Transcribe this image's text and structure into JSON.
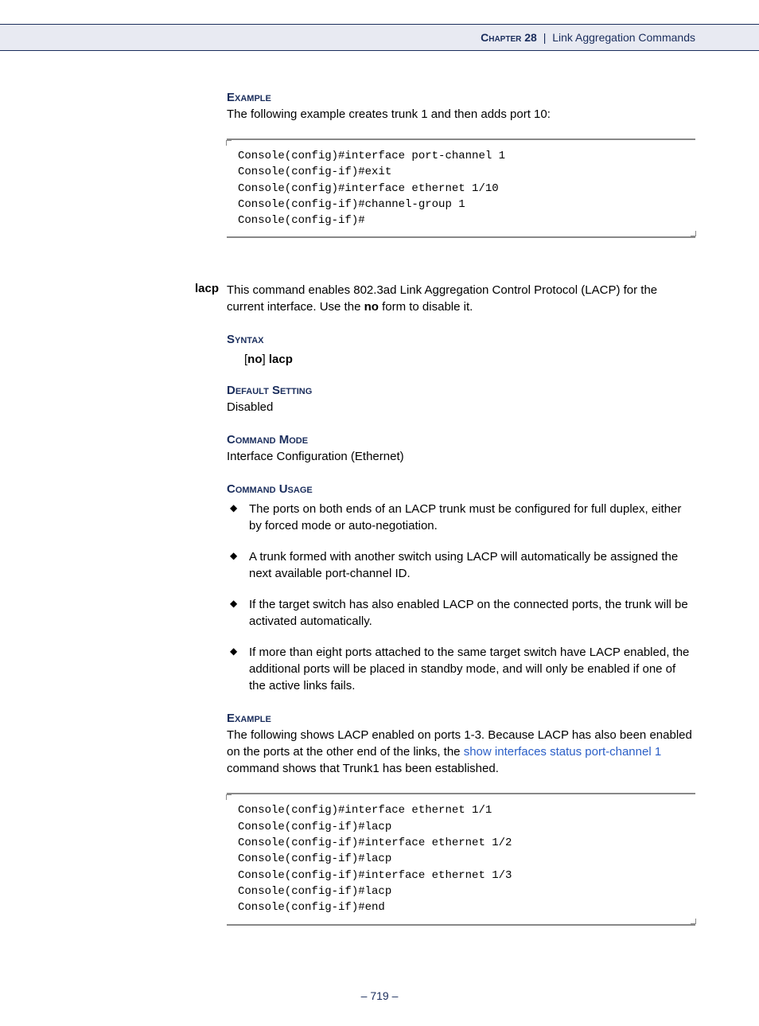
{
  "header": {
    "chapter_label": "Chapter 28",
    "separator": "|",
    "chapter_title": "Link Aggregation Commands"
  },
  "sections": {
    "example1": {
      "heading": "Example",
      "intro": "The following example creates trunk 1 and then adds port 10:",
      "code": "Console(config)#interface port-channel 1\nConsole(config-if)#exit\nConsole(config)#interface ethernet 1/10\nConsole(config-if)#channel-group 1\nConsole(config-if)#"
    },
    "lacp": {
      "margin_label": "lacp",
      "desc_pre": "This command enables 802.3ad Link Aggregation Control Protocol (LACP) for the current interface. Use the ",
      "desc_bold": "no",
      "desc_post": " form to disable it.",
      "syntax_heading": "Syntax",
      "syntax_open": "[",
      "syntax_no": "no",
      "syntax_close": "] ",
      "syntax_cmd": "lacp",
      "default_heading": "Default Setting",
      "default_value": "Disabled",
      "mode_heading": "Command Mode",
      "mode_value": "Interface Configuration (Ethernet)",
      "usage_heading": "Command Usage",
      "usage_items": [
        "The ports on both ends of an LACP trunk must be configured for full duplex, either by forced mode or auto-negotiation.",
        "A trunk formed with another switch using LACP will automatically be assigned the next available port-channel ID.",
        "If the target switch has also enabled LACP on the connected ports, the trunk will be activated automatically.",
        "If more than eight ports attached to the same target switch have LACP enabled, the additional ports will be placed in standby mode, and will only be enabled if one of the active links fails."
      ],
      "example_heading": "Example",
      "example_pre": "The following shows LACP enabled on ports 1-3. Because LACP has also been enabled on the ports at the other end of the links, the ",
      "example_link": "show interfaces status port-channel 1",
      "example_post": " command shows that Trunk1 has been established.",
      "example_code": "Console(config)#interface ethernet 1/1\nConsole(config-if)#lacp\nConsole(config-if)#interface ethernet 1/2\nConsole(config-if)#lacp\nConsole(config-if)#interface ethernet 1/3\nConsole(config-if)#lacp\nConsole(config-if)#end"
    }
  },
  "footer": {
    "page": "– 719 –"
  }
}
